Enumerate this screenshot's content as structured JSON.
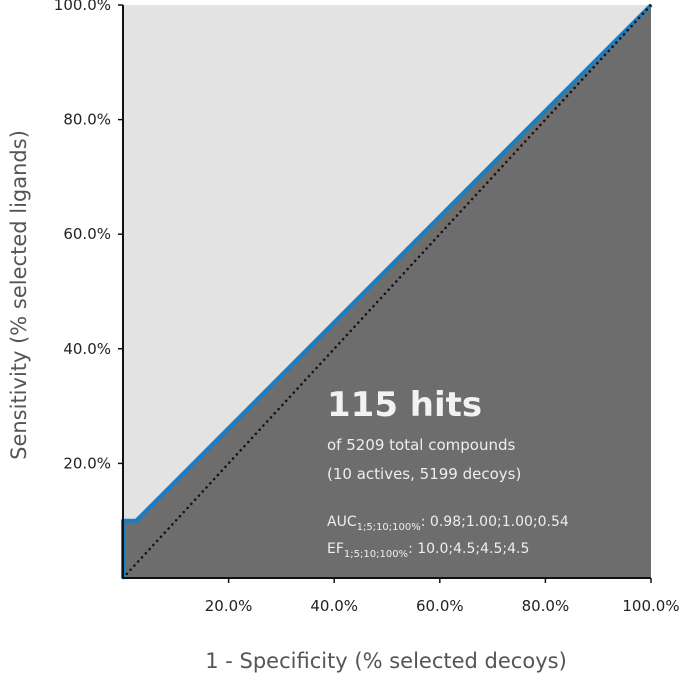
{
  "chart_data": {
    "type": "line",
    "xlabel": "1 - Specificity (% selected decoys)",
    "ylabel": "Sensitivity (% selected ligands)",
    "xlim": [
      0,
      100
    ],
    "ylim": [
      0,
      100
    ],
    "x_ticks": [
      "20.0%",
      "40.0%",
      "60.0%",
      "80.0%",
      "100.0%"
    ],
    "y_ticks": [
      "20.0%",
      "40.0%",
      "60.0%",
      "80.0%",
      "100.0%"
    ],
    "x_tick_values": [
      20,
      40,
      60,
      80,
      100
    ],
    "y_tick_values": [
      20,
      40,
      60,
      80,
      100
    ],
    "grid": false,
    "series": [
      {
        "name": "",
        "style": "solid",
        "color": "#1a7ec4",
        "x": [
          0,
          0,
          2.5,
          100
        ],
        "y": [
          0,
          10,
          10,
          100
        ]
      },
      {
        "name": "",
        "style": "dotted",
        "color": "#111111",
        "x": [
          0,
          100
        ],
        "y": [
          0,
          100
        ]
      }
    ],
    "colors": {
      "area_under_curve": "#6d6d6d",
      "area_above_curve": "#e3e3e3",
      "axis": "#111111"
    },
    "annotations": {
      "headline": "115 hits",
      "line1": "of 5209 total compounds",
      "line2": "(10 actives, 5199 decoys)",
      "auc_label": "AUC",
      "auc_sub": "1;5;10;100%",
      "auc_values": ": 0.98;1.00;1.00;0.54",
      "ef_label": "EF",
      "ef_sub": "1;5;10;100%",
      "ef_values": ": 10.0;4.5;4.5;4.5"
    }
  }
}
